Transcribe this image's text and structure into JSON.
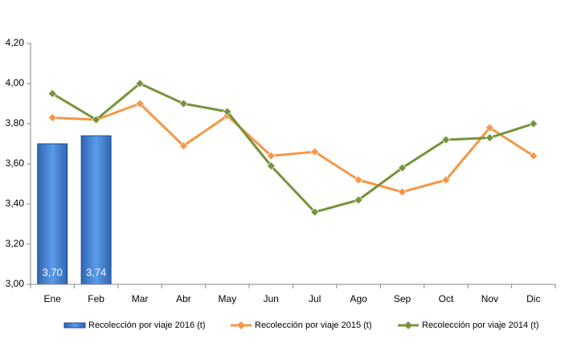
{
  "chart_data": {
    "type": "bar_line",
    "categories": [
      "Ene",
      "Feb",
      "Mar",
      "Abr",
      "May",
      "Jun",
      "Jul",
      "Ago",
      "Sep",
      "Oct",
      "Nov",
      "Dic"
    ],
    "series": [
      {
        "name": "Recolección por viaje 2016 (t)",
        "type": "bar",
        "color": "#3c7dd4",
        "values": [
          3.7,
          3.74,
          null,
          null,
          null,
          null,
          null,
          null,
          null,
          null,
          null,
          null
        ],
        "value_labels": [
          "3,70",
          "3,74",
          null,
          null,
          null,
          null,
          null,
          null,
          null,
          null,
          null,
          null
        ]
      },
      {
        "name": "Recolección por viaje 2015 (t)",
        "type": "line",
        "color": "#f79646",
        "values": [
          3.83,
          3.82,
          3.9,
          3.69,
          3.84,
          3.64,
          3.66,
          3.52,
          3.46,
          3.52,
          3.78,
          3.64
        ]
      },
      {
        "name": "Recolección por viaje 2014 (t)",
        "type": "line",
        "color": "#77933c",
        "values": [
          3.95,
          3.82,
          4.0,
          3.9,
          3.86,
          3.59,
          3.36,
          3.42,
          3.58,
          3.72,
          3.73,
          3.8
        ]
      }
    ],
    "ylim": [
      3.0,
      4.2
    ],
    "yticks": [
      {
        "value": 3.0,
        "label": "3,00"
      },
      {
        "value": 3.2,
        "label": "3,20"
      },
      {
        "value": 3.4,
        "label": "3,40"
      },
      {
        "value": 3.6,
        "label": "3,60"
      },
      {
        "value": 3.8,
        "label": "3,80"
      },
      {
        "value": 4.0,
        "label": "4,00"
      },
      {
        "value": 4.2,
        "label": "4,20"
      }
    ],
    "legend": "bottom"
  }
}
